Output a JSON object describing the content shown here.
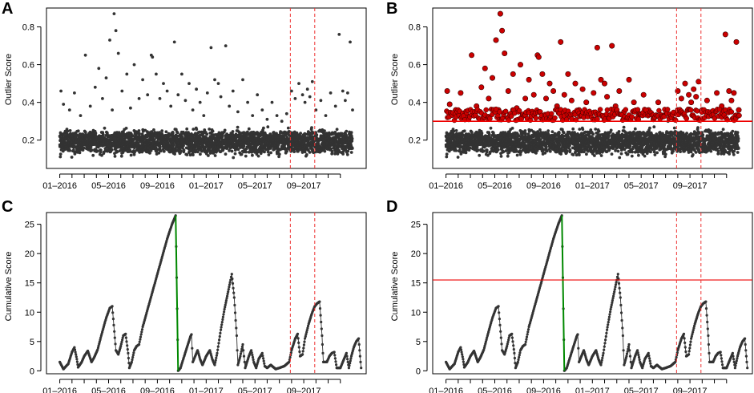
{
  "figure": {
    "x_axis": {
      "tick_labels": [
        "01–2016",
        "05–2016",
        "09–2016",
        "01–2017",
        "05–2017",
        "09–2017"
      ],
      "tick_months": [
        0,
        4,
        8,
        12,
        16,
        20
      ],
      "month_ticks": 24,
      "range_months": [
        -0.5,
        24.0
      ]
    },
    "colors": {
      "points": "#333333",
      "highlight_fill": "#cc0000",
      "highlight_edge": "#330000",
      "threshold": "#ee0000",
      "vline": "#ee3333",
      "drop_line": "#008800",
      "frame": "#000000",
      "text": "#000000"
    }
  },
  "chart_data": [
    {
      "panel": "A",
      "type": "scatter",
      "ylabel": "Outlier Score",
      "ylim": [
        0.05,
        0.9
      ],
      "yticks": [
        0.2,
        0.4,
        0.6,
        0.8
      ],
      "yticklabels": [
        "0.2",
        "0.4",
        "0.6",
        "0.8"
      ],
      "vlines_month": [
        18.9,
        20.9
      ],
      "baseline": {
        "min": 0.1,
        "max": 0.28,
        "dense_step_months": 0.012
      },
      "outliers": [
        {
          "x": 0.1,
          "y": 0.46
        },
        {
          "x": 0.3,
          "y": 0.39
        },
        {
          "x": 0.8,
          "y": 0.36
        },
        {
          "x": 1.2,
          "y": 0.45
        },
        {
          "x": 1.7,
          "y": 0.33
        },
        {
          "x": 2.1,
          "y": 0.65
        },
        {
          "x": 2.5,
          "y": 0.38
        },
        {
          "x": 2.9,
          "y": 0.48
        },
        {
          "x": 3.2,
          "y": 0.58
        },
        {
          "x": 3.5,
          "y": 0.42
        },
        {
          "x": 3.8,
          "y": 0.53
        },
        {
          "x": 4.1,
          "y": 0.73
        },
        {
          "x": 4.3,
          "y": 0.36
        },
        {
          "x": 4.45,
          "y": 0.87
        },
        {
          "x": 4.6,
          "y": 0.78
        },
        {
          "x": 4.8,
          "y": 0.66
        },
        {
          "x": 5.1,
          "y": 0.46
        },
        {
          "x": 5.5,
          "y": 0.55
        },
        {
          "x": 5.8,
          "y": 0.37
        },
        {
          "x": 6.1,
          "y": 0.6
        },
        {
          "x": 6.5,
          "y": 0.42
        },
        {
          "x": 6.8,
          "y": 0.52
        },
        {
          "x": 7.2,
          "y": 0.44
        },
        {
          "x": 7.5,
          "y": 0.65
        },
        {
          "x": 7.6,
          "y": 0.64
        },
        {
          "x": 7.9,
          "y": 0.55
        },
        {
          "x": 8.2,
          "y": 0.42
        },
        {
          "x": 8.5,
          "y": 0.5
        },
        {
          "x": 8.8,
          "y": 0.46
        },
        {
          "x": 9.1,
          "y": 0.38
        },
        {
          "x": 9.4,
          "y": 0.72
        },
        {
          "x": 9.7,
          "y": 0.44
        },
        {
          "x": 10.0,
          "y": 0.55
        },
        {
          "x": 10.3,
          "y": 0.41
        },
        {
          "x": 10.6,
          "y": 0.5
        },
        {
          "x": 10.9,
          "y": 0.36
        },
        {
          "x": 11.2,
          "y": 0.47
        },
        {
          "x": 11.5,
          "y": 0.4
        },
        {
          "x": 11.8,
          "y": 0.33
        },
        {
          "x": 12.1,
          "y": 0.45
        },
        {
          "x": 12.4,
          "y": 0.69
        },
        {
          "x": 12.7,
          "y": 0.52
        },
        {
          "x": 13.0,
          "y": 0.5
        },
        {
          "x": 13.2,
          "y": 0.43
        },
        {
          "x": 13.6,
          "y": 0.7
        },
        {
          "x": 13.9,
          "y": 0.38
        },
        {
          "x": 14.2,
          "y": 0.46
        },
        {
          "x": 14.6,
          "y": 0.35
        },
        {
          "x": 15.0,
          "y": 0.52
        },
        {
          "x": 15.4,
          "y": 0.4
        },
        {
          "x": 15.8,
          "y": 0.33
        },
        {
          "x": 16.2,
          "y": 0.44
        },
        {
          "x": 16.6,
          "y": 0.36
        },
        {
          "x": 17.0,
          "y": 0.31
        },
        {
          "x": 17.4,
          "y": 0.4
        },
        {
          "x": 17.8,
          "y": 0.33
        },
        {
          "x": 18.2,
          "y": 0.3
        },
        {
          "x": 18.6,
          "y": 0.34
        },
        {
          "x": 19.0,
          "y": 0.46
        },
        {
          "x": 19.3,
          "y": 0.42
        },
        {
          "x": 19.6,
          "y": 0.5
        },
        {
          "x": 19.9,
          "y": 0.44
        },
        {
          "x": 20.1,
          "y": 0.4
        },
        {
          "x": 20.3,
          "y": 0.47
        },
        {
          "x": 20.5,
          "y": 0.43
        },
        {
          "x": 20.7,
          "y": 0.51
        },
        {
          "x": 21.0,
          "y": 0.36
        },
        {
          "x": 21.4,
          "y": 0.41
        },
        {
          "x": 21.8,
          "y": 0.33
        },
        {
          "x": 22.2,
          "y": 0.45
        },
        {
          "x": 22.6,
          "y": 0.38
        },
        {
          "x": 22.9,
          "y": 0.76
        },
        {
          "x": 23.2,
          "y": 0.46
        },
        {
          "x": 23.4,
          "y": 0.41
        },
        {
          "x": 23.6,
          "y": 0.45
        },
        {
          "x": 23.8,
          "y": 0.72
        },
        {
          "x": 24.0,
          "y": 0.36
        }
      ]
    },
    {
      "panel": "B",
      "type": "scatter",
      "ylabel": "Outlier Score",
      "ylim": [
        0.05,
        0.9
      ],
      "yticks": [
        0.2,
        0.4,
        0.6,
        0.8
      ],
      "yticklabels": [
        "0.2",
        "0.4",
        "0.6",
        "0.8"
      ],
      "vlines_month": [
        18.9,
        20.9
      ],
      "threshold": 0.3,
      "baseline": {
        "min": 0.1,
        "max": 0.28,
        "dense_step_months": 0.012
      },
      "outliers_from_panel": "A",
      "note": "Points above the threshold are highlighted in red."
    },
    {
      "panel": "C",
      "type": "line",
      "ylabel": "Cumulative Score",
      "ylim": [
        -0.5,
        27
      ],
      "yticks": [
        0,
        5,
        10,
        15,
        20,
        25
      ],
      "yticklabels": [
        "0",
        "5",
        "10",
        "15",
        "20",
        "25"
      ],
      "vlines_month": [
        18.9,
        20.9
      ],
      "drop_line": {
        "from": [
          9.5,
          26.5
        ],
        "to": [
          9.7,
          0.0
        ]
      },
      "waypoints": [
        [
          0.0,
          1.5
        ],
        [
          0.3,
          0.3
        ],
        [
          0.7,
          1.2
        ],
        [
          1.0,
          3.2
        ],
        [
          1.2,
          4.0
        ],
        [
          1.4,
          2.0
        ],
        [
          1.5,
          0.6
        ],
        [
          1.8,
          1.5
        ],
        [
          2.0,
          2.5
        ],
        [
          2.3,
          3.4
        ],
        [
          2.6,
          1.5
        ],
        [
          2.8,
          2.2
        ],
        [
          3.1,
          3.6
        ],
        [
          3.4,
          6.0
        ],
        [
          3.8,
          9.0
        ],
        [
          4.1,
          10.7
        ],
        [
          4.3,
          11.0
        ],
        [
          4.6,
          3.5
        ],
        [
          4.8,
          2.8
        ],
        [
          5.0,
          4.2
        ],
        [
          5.2,
          6.0
        ],
        [
          5.4,
          6.3
        ],
        [
          5.6,
          3.0
        ],
        [
          5.7,
          0.5
        ],
        [
          5.9,
          1.5
        ],
        [
          6.1,
          3.5
        ],
        [
          6.3,
          4.2
        ],
        [
          6.5,
          4.5
        ],
        [
          6.8,
          7.5
        ],
        [
          7.2,
          10.5
        ],
        [
          7.6,
          13.5
        ],
        [
          8.0,
          16.5
        ],
        [
          8.4,
          19.5
        ],
        [
          8.8,
          22.5
        ],
        [
          9.2,
          25.0
        ],
        [
          9.5,
          26.5
        ],
        [
          9.7,
          0.0
        ],
        [
          9.9,
          0.5
        ],
        [
          10.2,
          2.5
        ],
        [
          10.5,
          4.5
        ],
        [
          10.7,
          5.8
        ],
        [
          10.8,
          6.2
        ],
        [
          10.9,
          1.5
        ],
        [
          11.1,
          2.5
        ],
        [
          11.3,
          3.5
        ],
        [
          11.5,
          2.0
        ],
        [
          11.7,
          1.0
        ],
        [
          12.0,
          2.5
        ],
        [
          12.3,
          3.5
        ],
        [
          12.5,
          2.0
        ],
        [
          12.7,
          1.0
        ],
        [
          12.9,
          3.0
        ],
        [
          13.2,
          7.0
        ],
        [
          13.5,
          10.5
        ],
        [
          13.8,
          13.5
        ],
        [
          14.0,
          15.5
        ],
        [
          14.1,
          16.5
        ],
        [
          14.3,
          12.5
        ],
        [
          14.5,
          6.0
        ],
        [
          14.6,
          1.0
        ],
        [
          14.8,
          2.5
        ],
        [
          15.0,
          4.5
        ],
        [
          15.1,
          2.5
        ],
        [
          15.2,
          0.5
        ],
        [
          15.5,
          2.5
        ],
        [
          15.7,
          3.5
        ],
        [
          15.9,
          1.5
        ],
        [
          16.1,
          0.5
        ],
        [
          16.3,
          2.0
        ],
        [
          16.6,
          3.0
        ],
        [
          16.8,
          0.8
        ],
        [
          17.0,
          0.5
        ],
        [
          17.3,
          1.0
        ],
        [
          17.7,
          0.3
        ],
        [
          18.0,
          0.5
        ],
        [
          18.4,
          0.8
        ],
        [
          18.8,
          1.5
        ],
        [
          19.0,
          3.5
        ],
        [
          19.3,
          5.5
        ],
        [
          19.5,
          6.3
        ],
        [
          19.7,
          2.5
        ],
        [
          19.9,
          2.8
        ],
        [
          20.1,
          5.5
        ],
        [
          20.4,
          8.0
        ],
        [
          20.7,
          10.0
        ],
        [
          20.9,
          11.0
        ],
        [
          21.1,
          11.5
        ],
        [
          21.3,
          11.8
        ],
        [
          21.5,
          6.0
        ],
        [
          21.6,
          1.5
        ],
        [
          21.9,
          1.5
        ],
        [
          22.1,
          2.5
        ],
        [
          22.3,
          3.0
        ],
        [
          22.5,
          3.2
        ],
        [
          22.7,
          0.5
        ],
        [
          23.0,
          0.5
        ],
        [
          23.2,
          1.5
        ],
        [
          23.4,
          2.5
        ],
        [
          23.5,
          3.0
        ],
        [
          23.7,
          0.5
        ],
        [
          23.9,
          2.5
        ],
        [
          24.1,
          4.0
        ],
        [
          24.3,
          5.0
        ],
        [
          24.5,
          5.5
        ],
        [
          24.7,
          0.5
        ]
      ]
    },
    {
      "panel": "D",
      "type": "line",
      "ylabel": "Cumulative Score",
      "ylim": [
        -0.5,
        27
      ],
      "yticks": [
        0,
        5,
        10,
        15,
        20,
        25
      ],
      "yticklabels": [
        "0",
        "5",
        "10",
        "15",
        "20",
        "25"
      ],
      "vlines_month": [
        18.9,
        20.9
      ],
      "threshold": 15.5,
      "drop_line": {
        "from": [
          9.5,
          26.5
        ],
        "to": [
          9.7,
          0.0
        ]
      },
      "waypoints_from_panel": "C"
    }
  ]
}
